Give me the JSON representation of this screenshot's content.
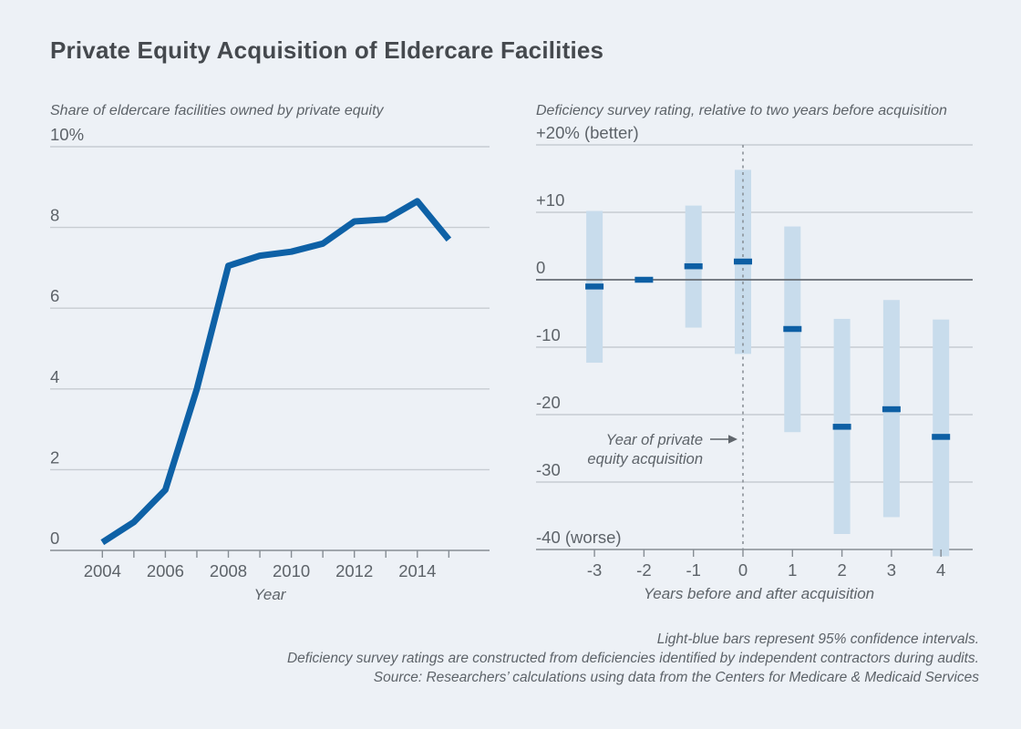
{
  "title": "Private Equity Acquisition of Eldercare Facilities",
  "colors": {
    "background": "#edf1f6",
    "line": "#0e61a6",
    "ci_bar": "#c8dcec",
    "point_marker": "#0d5fa4",
    "gridline": "#c7ccd2",
    "axis": "#868d94",
    "zero_line": "#666c73",
    "dashed_line": "#8a9198",
    "title_text": "#45494e",
    "gray_text": "#5d6369"
  },
  "chart_data": [
    {
      "type": "line",
      "title": "Share of eldercare facilities owned by private equity",
      "xlabel": "Year",
      "ylabel": "",
      "ylim": [
        0,
        10
      ],
      "grid": true,
      "y_ticks": [
        10,
        8,
        6,
        4,
        2,
        0
      ],
      "y_tick_labels": [
        "10%",
        "8",
        "6",
        "4",
        "2",
        "0"
      ],
      "x": [
        2004,
        2005,
        2006,
        2007,
        2008,
        2009,
        2010,
        2011,
        2012,
        2013,
        2014,
        2015
      ],
      "x_tick_labels": [
        2004,
        2006,
        2008,
        2010,
        2012,
        2014
      ],
      "values": [
        0.2,
        0.7,
        1.5,
        4.0,
        7.05,
        7.3,
        7.4,
        7.6,
        8.15,
        8.2,
        8.65,
        7.7
      ],
      "line_color": "#0e61a6"
    },
    {
      "type": "bar-ci",
      "title": "Deficiency survey rating, relative to two years before acquisition",
      "xlabel": "Years before and after acquisition",
      "ylabel": "",
      "ylim": [
        -40,
        20
      ],
      "grid": true,
      "y_ticks": [
        20,
        10,
        0,
        -10,
        -20,
        -30,
        -40
      ],
      "y_tick_labels": [
        "+20% (better)",
        "+10",
        "0",
        "-10",
        "-20",
        "-30",
        "-40 (worse)"
      ],
      "categories": [
        -3,
        -2,
        -1,
        0,
        1,
        2,
        3,
        4
      ],
      "points": [
        -1,
        0,
        2,
        2.7,
        -7.3,
        -21.8,
        -19.2,
        -23.3
      ],
      "ci_high": [
        10.2,
        null,
        11,
        16.3,
        7.9,
        -5.8,
        -3,
        -5.9
      ],
      "ci_low": [
        -12.3,
        null,
        -7.1,
        -11,
        -22.6,
        -37.7,
        -35.2,
        -41
      ],
      "ref_line_x": 0,
      "annotation_lines": [
        "Year of private",
        "equity acquisition"
      ],
      "bar_color": "#c8dcec",
      "marker_color": "#0d5fa4"
    }
  ],
  "notes": {
    "lines": [
      "Light-blue bars represent 95% confidence intervals.",
      "Deficiency survey ratings are constructed from deficiencies identified by independent contractors during audits.",
      "Source: Researchers’ calculations using data from the Centers for Medicare & Medicaid Services"
    ]
  }
}
